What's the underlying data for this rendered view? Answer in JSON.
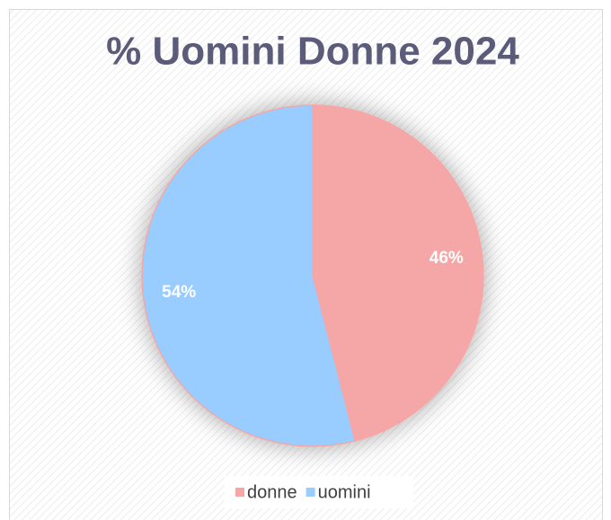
{
  "chart_data": {
    "type": "pie",
    "title": "% Uomini Donne 2024",
    "categories": [
      "donne",
      "uomini"
    ],
    "values": [
      46,
      54
    ],
    "value_labels": [
      "46%",
      "54%"
    ],
    "colors": [
      "#f4a7a6",
      "#99ccff"
    ],
    "legend": "bottom"
  }
}
